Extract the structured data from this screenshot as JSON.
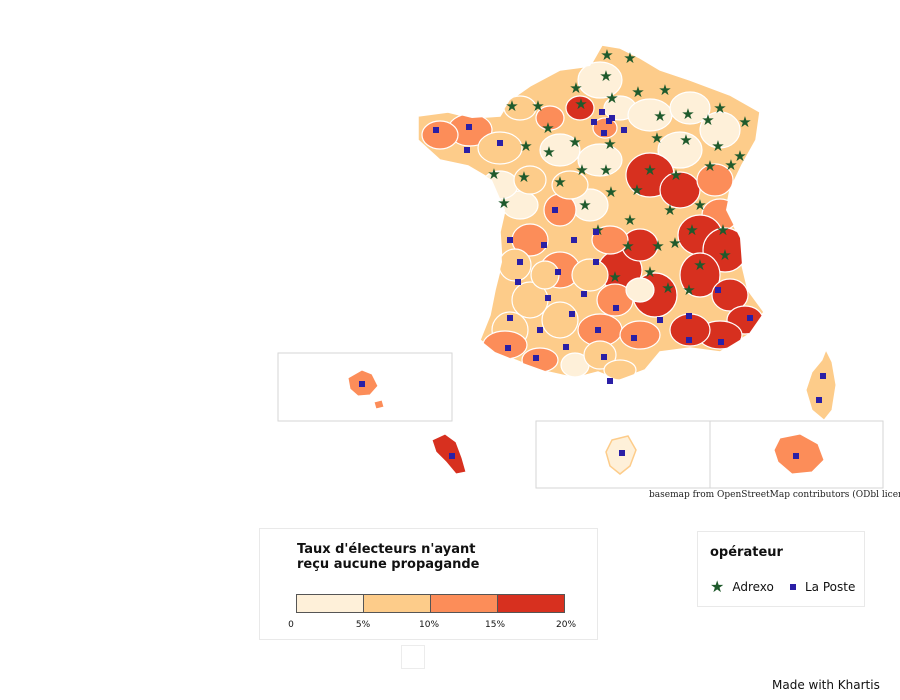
{
  "map": {
    "credit": "basemap from OpenStreetMap contributors (ODbl license)",
    "colors": {
      "bin1": "#fef0d9",
      "bin2": "#fdcc8a",
      "bin3": "#fc8d59",
      "bin4": "#d7301f",
      "border": "#ffffff",
      "inset_frame": "#d6d6d6",
      "adrexo": "#1f5a2c",
      "laposte": "#2a1fa6"
    }
  },
  "legend": {
    "title_line1": "Taux d'électeurs n'ayant",
    "title_line2": "reçu aucune propagande",
    "ticks": [
      "0",
      "5%",
      "10%",
      "15%",
      "20%"
    ],
    "bins": [
      "0–5%",
      "5–10%",
      "10–15%",
      "15–20%"
    ]
  },
  "operator_legend": {
    "title": "opérateur",
    "adrexo": "Adrexo",
    "laposte": "La Poste",
    "adrexo_icon": "star-icon",
    "laposte_icon": "square-icon"
  },
  "footer": {
    "made_with": "Made with Khartis"
  }
}
